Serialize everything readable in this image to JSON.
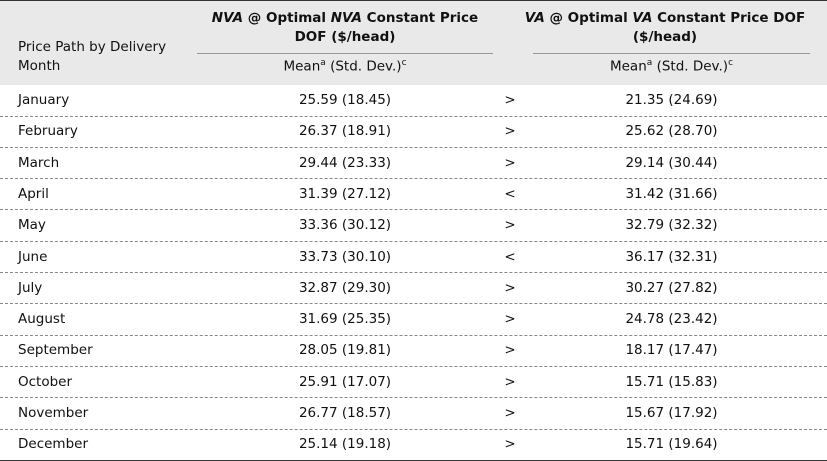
{
  "header": {
    "row_label": "Price Path by Delivery Month",
    "col2_title": [
      "NVA",
      " @ Optimal ",
      "NVA",
      " Constant Price DOF ($/head)"
    ],
    "col3_title": [
      "VA",
      " @ Optimal ",
      "VA",
      " Constant Price DOF ($/head)"
    ],
    "col2_sub": [
      "Mean",
      "a",
      " (Std. Dev.)",
      "c"
    ],
    "col3_sub": [
      "Mean",
      "a",
      " (Std. Dev.)",
      "c"
    ]
  },
  "table": {
    "rows": [
      [
        "January",
        "25.59 (18.45)",
        ">",
        "21.35 (24.69)"
      ],
      [
        "February",
        "26.37 (18.91)",
        ">",
        "25.62 (28.70)"
      ],
      [
        "March",
        "29.44 (23.33)",
        ">",
        "29.14 (30.44)"
      ],
      [
        "April",
        "31.39 (27.12)",
        "<",
        "31.42 (31.66)"
      ],
      [
        "May",
        "33.36 (30.12)",
        ">",
        "32.79 (32.32)"
      ],
      [
        "June",
        "33.73 (30.10)",
        "<",
        "36.17 (32.31)"
      ],
      [
        "July",
        "32.87 (29.30)",
        ">",
        "30.27 (27.82)"
      ],
      [
        "August",
        "31.69 (25.35)",
        ">",
        "24.78 (23.42)"
      ],
      [
        "September",
        "28.05 (19.81)",
        ">",
        "18.17 (17.47)"
      ],
      [
        "October",
        "25.91 (17.07)",
        ">",
        "15.71 (15.83)"
      ],
      [
        "November",
        "26.77 (18.57)",
        ">",
        "15.67 (17.92)"
      ],
      [
        "December",
        "25.14 (19.18)",
        ">",
        "15.71 (19.64)"
      ]
    ]
  }
}
